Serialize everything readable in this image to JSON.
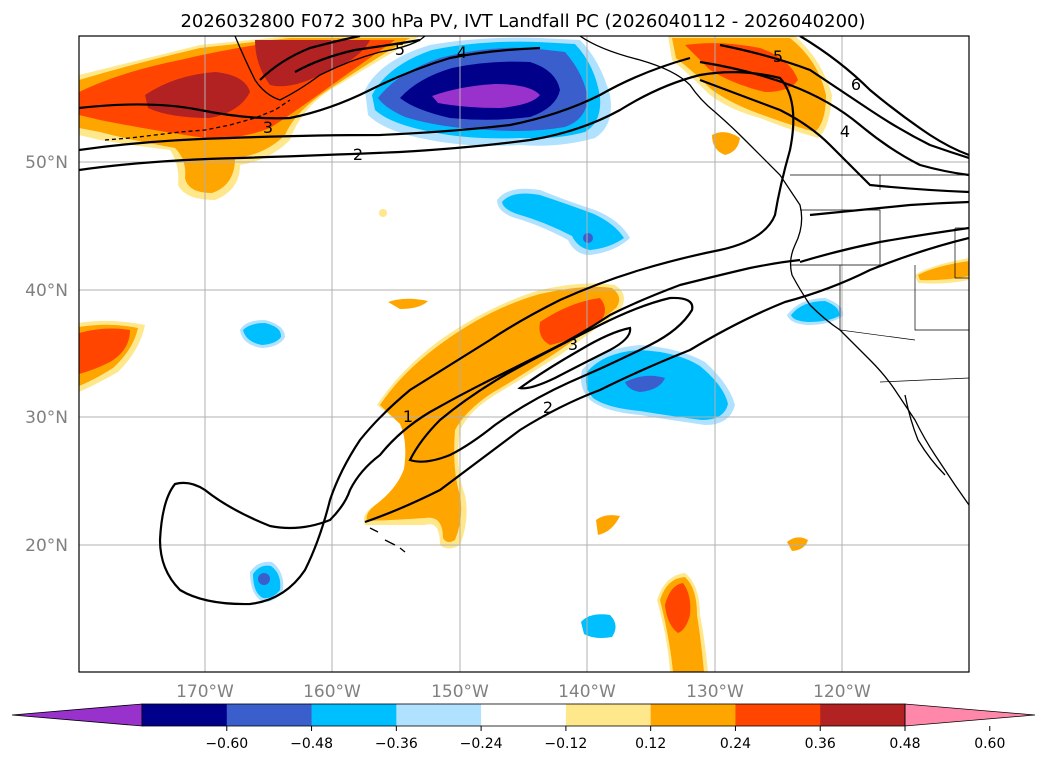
{
  "title": "2026032800 F072 300 hPa PV, IVT Landfall PC (2026040112 - 2026040200)",
  "lat_labels": [
    "50°N",
    "40°N",
    "30°N",
    "20°N"
  ],
  "lon_labels": [
    "170°W",
    "160°W",
    "150°W",
    "140°W",
    "130°W",
    "120°W"
  ],
  "colorbar": {
    "ticks": [
      "−0.60",
      "−0.48",
      "−0.36",
      "−0.24",
      "−0.12",
      "0.12",
      "0.24",
      "0.36",
      "0.48",
      "0.60"
    ],
    "colors": [
      "#9932cc",
      "#00008b",
      "#3a5fcd",
      "#00bfff",
      "#b0e2ff",
      "#ffffff",
      "#ffe78c",
      "#ffa500",
      "#ff4500",
      "#b22222",
      "#ff88aa"
    ]
  },
  "contour_labels": [
    "1",
    "2",
    "2",
    "3",
    "3",
    "4",
    "4",
    "5",
    "5",
    "6"
  ],
  "legend_colors": {
    "purple": "#9932cc",
    "navy": "#00008b",
    "blue": "#3a5fcd",
    "cyan": "#00bfff",
    "lightblue": "#b0e2ff",
    "yellow": "#ffe78c",
    "orange": "#ffa500",
    "redorange": "#ff4500",
    "darkred": "#b22222"
  }
}
